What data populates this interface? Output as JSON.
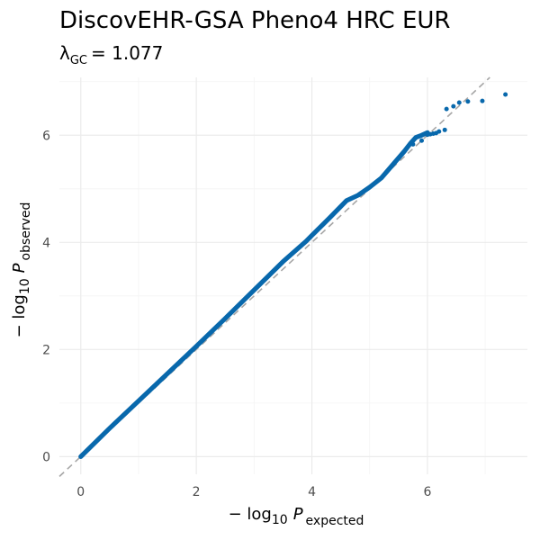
{
  "chart_data": {
    "type": "scatter",
    "title": "DiscovEHR-GSA Pheno4 HRC EUR",
    "subtitle": {
      "symbol": "λ",
      "subscript": "GC",
      "equals": "= 1.077",
      "value": 1.077
    },
    "xlabel": {
      "prefix": "− log",
      "base": "10",
      "p": "P",
      "subscript": "expected"
    },
    "ylabel": {
      "prefix": "− log",
      "base": "10",
      "p": "P",
      "subscript": "observed"
    },
    "xlim": [
      -0.37,
      7.73
    ],
    "ylim": [
      -0.33,
      7.08
    ],
    "x_ticks": [
      0,
      2,
      4,
      6
    ],
    "x_tick_labels": [
      "0",
      "2",
      "4",
      "6"
    ],
    "y_ticks": [
      0,
      2,
      4,
      6
    ],
    "y_tick_labels": [
      "0",
      "2",
      "4",
      "6"
    ],
    "grid": true,
    "reference_line": {
      "slope": 1,
      "intercept": 0,
      "style": "dashed",
      "color": "#a6a6a6"
    },
    "point_color": "#0868ac",
    "series": [
      {
        "dense_curve_x": [
          0,
          0.5,
          1.0,
          1.5,
          2.0,
          2.5,
          3.0,
          3.5,
          3.9,
          4.0,
          4.3,
          4.6,
          4.8,
          5.0,
          5.2,
          5.4,
          5.6,
          5.7,
          5.8,
          5.9,
          6.0
        ],
        "dense_curve_y": [
          0,
          0.53,
          1.04,
          1.55,
          2.06,
          2.58,
          3.11,
          3.64,
          4.02,
          4.13,
          4.45,
          4.78,
          4.88,
          5.03,
          5.2,
          5.45,
          5.7,
          5.84,
          5.96,
          6.0,
          6.05
        ],
        "tail_points": [
          {
            "x": 5.75,
            "y": 5.83
          },
          {
            "x": 5.9,
            "y": 5.9
          },
          {
            "x": 6.0,
            "y": 6.01
          },
          {
            "x": 6.05,
            "y": 6.02
          },
          {
            "x": 6.1,
            "y": 6.03
          },
          {
            "x": 6.15,
            "y": 6.04
          },
          {
            "x": 6.2,
            "y": 6.07
          },
          {
            "x": 6.3,
            "y": 6.1
          },
          {
            "x": 6.33,
            "y": 6.49
          },
          {
            "x": 6.45,
            "y": 6.54
          },
          {
            "x": 6.55,
            "y": 6.61
          },
          {
            "x": 6.7,
            "y": 6.63
          },
          {
            "x": 6.95,
            "y": 6.64
          },
          {
            "x": 7.35,
            "y": 6.76
          }
        ]
      }
    ]
  }
}
